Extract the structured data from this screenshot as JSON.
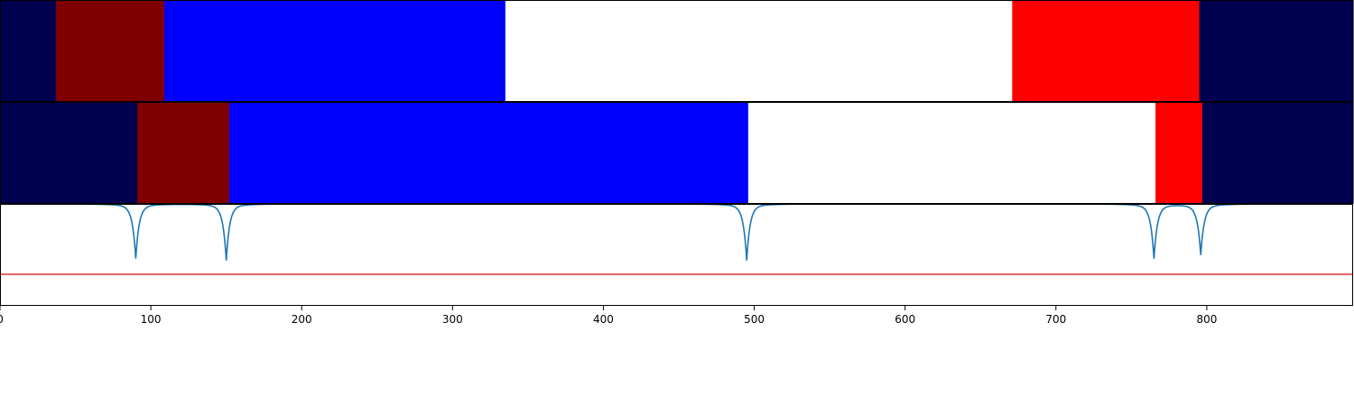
{
  "chart_data": {
    "type": "segmentation-timeline",
    "xlim": [
      0,
      897
    ],
    "x_ticks": [
      0,
      100,
      200,
      300,
      400,
      500,
      600,
      700,
      800
    ],
    "colors": {
      "navy": "#000050",
      "maroon": "#800000",
      "blue": "#0000ff",
      "white": "#ffffff",
      "red": "#ff0000",
      "curve": "#1f77b4",
      "threshold": "#e03030"
    },
    "rows": [
      {
        "segments": [
          {
            "start": 0,
            "end": 37,
            "color": "#000050"
          },
          {
            "start": 37,
            "end": 109,
            "color": "#800000"
          },
          {
            "start": 109,
            "end": 335,
            "color": "#0000ff"
          },
          {
            "start": 335,
            "end": 671,
            "color": "#ffffff"
          },
          {
            "start": 671,
            "end": 795,
            "color": "#ff0000"
          },
          {
            "start": 795,
            "end": 897,
            "color": "#000050"
          }
        ]
      },
      {
        "segments": [
          {
            "start": 0,
            "end": 91,
            "color": "#000050"
          },
          {
            "start": 91,
            "end": 152,
            "color": "#800000"
          },
          {
            "start": 152,
            "end": 496,
            "color": "#0000ff"
          },
          {
            "start": 496,
            "end": 766,
            "color": "#ffffff"
          },
          {
            "start": 766,
            "end": 797,
            "color": "#ff0000"
          },
          {
            "start": 797,
            "end": 897,
            "color": "#000050"
          }
        ]
      }
    ],
    "boundary_curve": {
      "x_start": 32,
      "x_end": 897,
      "ylim": [
        0,
        1
      ],
      "baseline": 1.0,
      "dips": [
        {
          "x": 90,
          "depth": 0.45
        },
        {
          "x": 150,
          "depth": 0.43
        },
        {
          "x": 495,
          "depth": 0.43
        },
        {
          "x": 765,
          "depth": 0.45
        },
        {
          "x": 796,
          "depth": 0.49
        }
      ],
      "threshold": 0.31
    }
  }
}
